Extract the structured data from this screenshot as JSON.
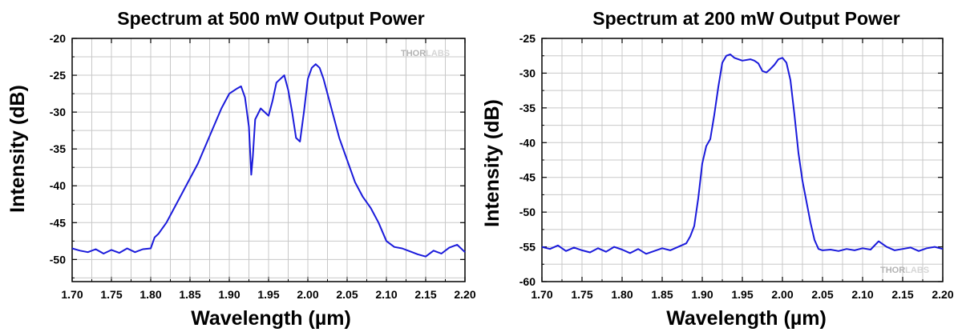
{
  "chart_data": [
    {
      "type": "line",
      "title": "Spectrum at 500 mW Output Power",
      "xlabel": "Wavelength (µm)",
      "ylabel": "Intensity (dB)",
      "xlim": [
        1.7,
        2.2
      ],
      "ylim": [
        -53,
        -20
      ],
      "xticks": [
        "1.70",
        "1.75",
        "1.80",
        "1.85",
        "1.90",
        "1.95",
        "2.00",
        "2.05",
        "2.10",
        "2.15",
        "2.20"
      ],
      "yticks": [
        "-20",
        "-25",
        "-30",
        "-35",
        "-40",
        "-45",
        "-50"
      ],
      "grid": true,
      "line_color": "#1a1adb",
      "watermark": {
        "part1": "THOR",
        "part2": "LABS"
      },
      "watermark_position": "top-right",
      "series": [
        {
          "x": [
            1.7,
            1.71,
            1.72,
            1.73,
            1.74,
            1.75,
            1.76,
            1.77,
            1.78,
            1.79,
            1.8,
            1.805,
            1.81,
            1.82,
            1.83,
            1.84,
            1.85,
            1.86,
            1.87,
            1.88,
            1.89,
            1.9,
            1.91,
            1.915,
            1.92,
            1.925,
            1.928,
            1.93,
            1.933,
            1.94,
            1.945,
            1.95,
            1.955,
            1.96,
            1.965,
            1.97,
            1.975,
            1.98,
            1.985,
            1.99,
            1.995,
            2.0,
            2.005,
            2.01,
            2.015,
            2.02,
            2.03,
            2.04,
            2.05,
            2.06,
            2.07,
            2.08,
            2.09,
            2.1,
            2.11,
            2.12,
            2.13,
            2.14,
            2.15,
            2.16,
            2.17,
            2.18,
            2.19,
            2.2
          ],
          "y": [
            -48.5,
            -48.8,
            -49.0,
            -48.6,
            -49.2,
            -48.7,
            -49.1,
            -48.5,
            -49.0,
            -48.6,
            -48.5,
            -47.0,
            -46.5,
            -45.0,
            -43.0,
            -41.0,
            -39.0,
            -37.0,
            -34.5,
            -32.0,
            -29.5,
            -27.5,
            -26.8,
            -26.5,
            -28.0,
            -32.0,
            -38.5,
            -36.0,
            -31.0,
            -29.5,
            -30.0,
            -30.5,
            -28.5,
            -26.0,
            -25.5,
            -25.0,
            -27.0,
            -30.0,
            -33.5,
            -34.0,
            -30.0,
            -25.5,
            -24.0,
            -23.5,
            -24.0,
            -25.5,
            -29.5,
            -33.5,
            -36.5,
            -39.5,
            -41.5,
            -43.0,
            -45.0,
            -47.5,
            -48.3,
            -48.5,
            -48.9,
            -49.3,
            -49.6,
            -48.8,
            -49.2,
            -48.4,
            -48.0,
            -49.0
          ]
        }
      ]
    },
    {
      "type": "line",
      "title": "Spectrum at 200 mW Output Power",
      "xlabel": "Wavelength (µm)",
      "ylabel": "Intensity (dB)",
      "xlim": [
        1.7,
        2.2
      ],
      "ylim": [
        -60,
        -25
      ],
      "xticks": [
        "1.70",
        "1.75",
        "1.80",
        "1.85",
        "1.90",
        "1.95",
        "2.00",
        "2.05",
        "2.10",
        "2.15",
        "2.20"
      ],
      "yticks": [
        "-25",
        "-30",
        "-35",
        "-40",
        "-45",
        "-50",
        "-55",
        "-60"
      ],
      "grid": true,
      "line_color": "#1a1adb",
      "watermark": {
        "part1": "THOR",
        "part2": "LABS"
      },
      "watermark_position": "bottom-right",
      "series": [
        {
          "x": [
            1.7,
            1.71,
            1.72,
            1.73,
            1.74,
            1.75,
            1.76,
            1.77,
            1.78,
            1.79,
            1.8,
            1.81,
            1.82,
            1.83,
            1.84,
            1.85,
            1.86,
            1.87,
            1.88,
            1.885,
            1.89,
            1.895,
            1.9,
            1.905,
            1.91,
            1.915,
            1.92,
            1.925,
            1.93,
            1.935,
            1.94,
            1.95,
            1.96,
            1.965,
            1.97,
            1.975,
            1.98,
            1.985,
            1.99,
            1.995,
            2.0,
            2.005,
            2.01,
            2.015,
            2.02,
            2.025,
            2.03,
            2.035,
            2.04,
            2.045,
            2.05,
            2.06,
            2.07,
            2.08,
            2.09,
            2.1,
            2.11,
            2.12,
            2.13,
            2.14,
            2.15,
            2.16,
            2.17,
            2.18,
            2.19,
            2.2
          ],
          "y": [
            -55.0,
            -55.3,
            -54.8,
            -55.6,
            -55.1,
            -55.5,
            -55.8,
            -55.2,
            -55.7,
            -55.0,
            -55.4,
            -55.9,
            -55.3,
            -56.0,
            -55.6,
            -55.2,
            -55.5,
            -55.0,
            -54.5,
            -53.5,
            -52.0,
            -48.0,
            -43.0,
            -40.5,
            -39.5,
            -36.0,
            -32.0,
            -28.5,
            -27.5,
            -27.3,
            -27.8,
            -28.2,
            -28.0,
            -28.2,
            -28.6,
            -29.7,
            -29.9,
            -29.4,
            -28.8,
            -28.0,
            -27.8,
            -28.5,
            -31.0,
            -36.0,
            -41.5,
            -45.5,
            -48.5,
            -51.5,
            -54.0,
            -55.3,
            -55.5,
            -55.4,
            -55.6,
            -55.3,
            -55.5,
            -55.2,
            -55.4,
            -54.2,
            -55.0,
            -55.5,
            -55.3,
            -55.1,
            -55.6,
            -55.2,
            -55.0,
            -55.3
          ]
        }
      ]
    }
  ]
}
